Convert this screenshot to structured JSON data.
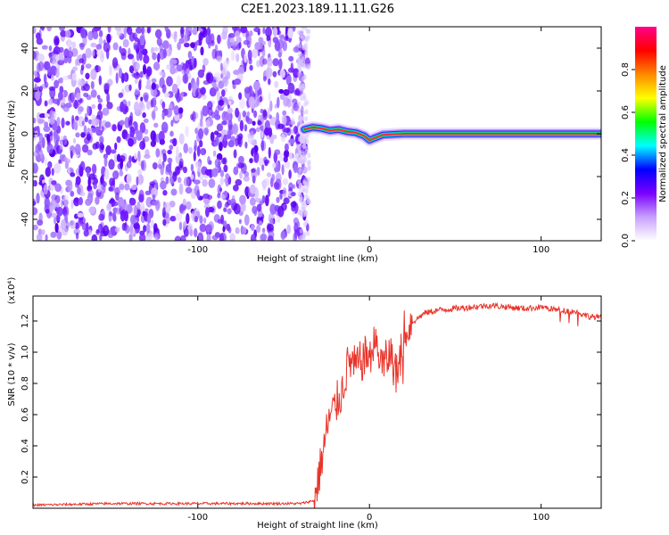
{
  "title": "C2E1.2023.189.11.11.G26",
  "chart_data": [
    {
      "type": "heatmap",
      "xlabel": "Height of straight line (km)",
      "ylabel": "Frequency (Hz)",
      "xlim": [
        -196,
        135
      ],
      "ylim": [
        -50,
        50
      ],
      "x_ticks": [
        -100,
        0,
        100
      ],
      "y_ticks": [
        -40,
        -20,
        0,
        20,
        40
      ],
      "colorbar": {
        "label": "Normalized spectral amplitude",
        "range": [
          0,
          1
        ],
        "ticks": [
          "0.0",
          "0.2",
          "0.4",
          "0.6",
          "0.8"
        ],
        "colors": [
          "#ffffff",
          "#c8a0ff",
          "#7a00ff",
          "#0000ff",
          "#00ffff",
          "#00ff00",
          "#ffff00",
          "#ff8800",
          "#ff0000",
          "#ff0088"
        ]
      },
      "noise_region_x": [
        -196,
        -38
      ],
      "signal_trace": {
        "x": [
          -38,
          -33,
          -28,
          -23,
          -18,
          -13,
          -8,
          -3,
          0,
          3,
          8,
          20,
          40,
          60,
          80,
          100,
          120,
          135
        ],
        "y": [
          2,
          3,
          2.5,
          1.5,
          2,
          1,
          0.5,
          -1,
          -3,
          -2,
          -0.5,
          0,
          0,
          0,
          0,
          0,
          0,
          0
        ]
      }
    },
    {
      "type": "line",
      "xlabel": "Height of straight line (km)",
      "ylabel": "SNR (10 * v/v)",
      "y_scale_label": "(x10⁴)",
      "xlim": [
        -196,
        135
      ],
      "ylim": [
        0,
        1.36
      ],
      "x_ticks": [
        -100,
        0,
        100
      ],
      "y_ticks": [
        0.2,
        0.4,
        0.6,
        0.8,
        1.0,
        1.2
      ],
      "color": "#e8342a",
      "series": [
        {
          "x": [
            -196,
            -150,
            -100,
            -60,
            -40,
            -32,
            -28,
            -24,
            -20,
            -16,
            -12,
            -8,
            -4,
            0,
            4,
            8,
            12,
            16,
            20,
            26,
            32,
            40,
            50,
            60,
            70,
            80,
            90,
            100,
            110,
            120,
            128,
            135
          ],
          "y": [
            0.02,
            0.03,
            0.03,
            0.03,
            0.03,
            0.05,
            0.3,
            0.55,
            0.65,
            0.75,
            0.95,
            0.9,
            0.95,
            1.0,
            1.05,
            0.9,
            1.0,
            0.85,
            1.15,
            1.2,
            1.25,
            1.27,
            1.28,
            1.29,
            1.3,
            1.29,
            1.28,
            1.29,
            1.27,
            1.26,
            1.23,
            1.22
          ]
        }
      ]
    }
  ]
}
